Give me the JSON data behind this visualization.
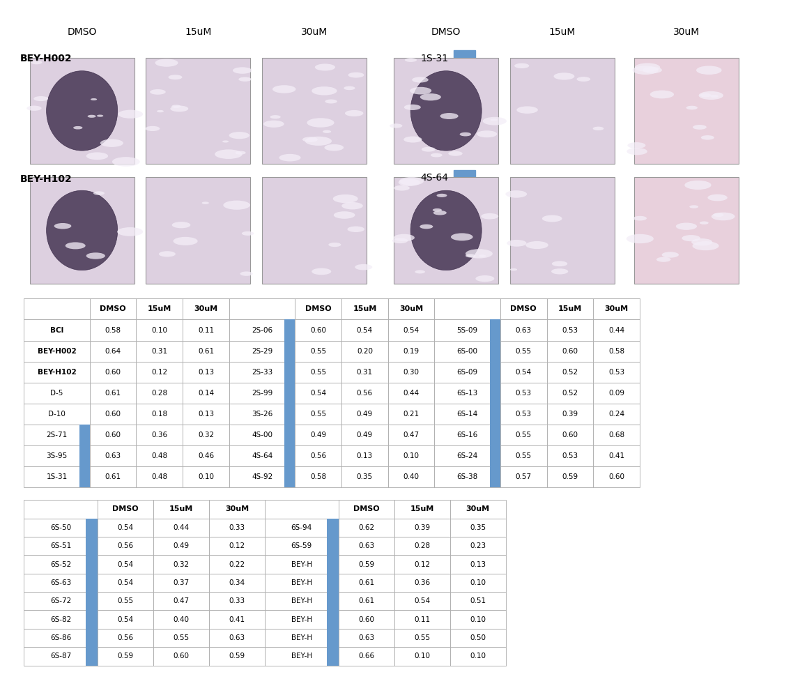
{
  "col_labels_top": [
    "DMSO",
    "15uM",
    "30uM",
    "DMSO",
    "15uM",
    "30uM"
  ],
  "row1_label": "BEY-H002",
  "row2_label": "BEY-H102",
  "compound1_label": "1S-31",
  "compound2_label": "4S-64",
  "table1": {
    "rows": [
      [
        "BCl",
        "0.58",
        "0.10",
        "0.11",
        "2S-06",
        "0.60",
        "0.54",
        "0.54",
        "5S-09",
        "0.63",
        "0.53",
        "0.44"
      ],
      [
        "BEY-H002",
        "0.64",
        "0.31",
        "0.61",
        "2S-29",
        "0.55",
        "0.20",
        "0.19",
        "6S-00",
        "0.55",
        "0.60",
        "0.58"
      ],
      [
        "BEY-H102",
        "0.60",
        "0.12",
        "0.13",
        "2S-33",
        "0.55",
        "0.31",
        "0.30",
        "6S-09",
        "0.54",
        "0.52",
        "0.53"
      ],
      [
        "D-5",
        "0.61",
        "0.28",
        "0.14",
        "2S-99",
        "0.54",
        "0.56",
        "0.44",
        "6S-13",
        "0.53",
        "0.52",
        "0.09"
      ],
      [
        "D-10",
        "0.60",
        "0.18",
        "0.13",
        "3S-26",
        "0.55",
        "0.49",
        "0.21",
        "6S-14",
        "0.53",
        "0.39",
        "0.24"
      ],
      [
        "2S-71",
        "0.60",
        "0.36",
        "0.32",
        "4S-00",
        "0.49",
        "0.49",
        "0.47",
        "6S-16",
        "0.55",
        "0.60",
        "0.68"
      ],
      [
        "3S-95",
        "0.63",
        "0.48",
        "0.46",
        "4S-64",
        "0.56",
        "0.13",
        "0.10",
        "6S-24",
        "0.55",
        "0.53",
        "0.41"
      ],
      [
        "1S-31",
        "0.61",
        "0.48",
        "0.10",
        "4S-92",
        "0.58",
        "0.35",
        "0.40",
        "6S-38",
        "0.57",
        "0.59",
        "0.60"
      ]
    ],
    "blue_label_col_indices": [
      4,
      8
    ],
    "blue_first_col_rows": [
      5,
      6,
      7
    ],
    "bold_rows": [
      0,
      1,
      2
    ],
    "n_groups": 3
  },
  "table2": {
    "rows": [
      [
        "6S-50",
        "0.54",
        "0.44",
        "0.33",
        "6S-94",
        "0.62",
        "0.39",
        "0.35"
      ],
      [
        "6S-51",
        "0.56",
        "0.49",
        "0.12",
        "6S-59",
        "0.63",
        "0.28",
        "0.23"
      ],
      [
        "6S-52",
        "0.54",
        "0.32",
        "0.22",
        "BEY-H",
        "0.59",
        "0.12",
        "0.13"
      ],
      [
        "6S-63",
        "0.54",
        "0.37",
        "0.34",
        "BEY-H",
        "0.61",
        "0.36",
        "0.10"
      ],
      [
        "6S-72",
        "0.55",
        "0.47",
        "0.33",
        "BEY-H",
        "0.61",
        "0.54",
        "0.51"
      ],
      [
        "6S-82",
        "0.54",
        "0.40",
        "0.41",
        "BEY-H",
        "0.60",
        "0.11",
        "0.10"
      ],
      [
        "6S-86",
        "0.56",
        "0.55",
        "0.63",
        "BEY-H",
        "0.63",
        "0.55",
        "0.50"
      ],
      [
        "6S-87",
        "0.59",
        "0.60",
        "0.59",
        "BEY-H",
        "0.66",
        "0.10",
        "0.10"
      ]
    ],
    "blue_label_col_indices": [
      4
    ],
    "blue_first_col_rows": [
      0,
      1,
      2,
      3,
      4,
      5,
      6,
      7
    ],
    "bold_rows": [],
    "n_groups": 2
  },
  "bg_color": "#ffffff",
  "blue_marker_color": "#6699cc"
}
